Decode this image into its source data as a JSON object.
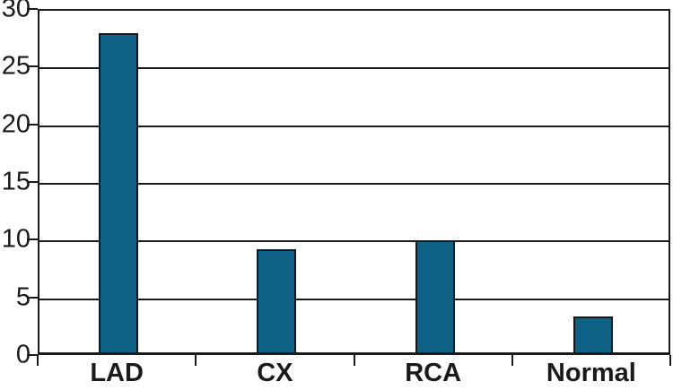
{
  "chart_data": {
    "type": "bar",
    "categories": [
      "LAD",
      "CX",
      "RCA",
      "Normal"
    ],
    "values": [
      27.7,
      8.9,
      9.7,
      3.1
    ],
    "title": "",
    "xlabel": "",
    "ylabel": "",
    "ylim": [
      0,
      30
    ],
    "yticks": [
      0,
      5,
      10,
      15,
      20,
      25,
      30
    ],
    "grid": true,
    "legend": false,
    "colors": {
      "bar_fill": "#0e6184",
      "bar_border": "#101820",
      "axis": "#1a1a1a",
      "background": "#ffffff",
      "text": "#1a1a1a"
    }
  }
}
